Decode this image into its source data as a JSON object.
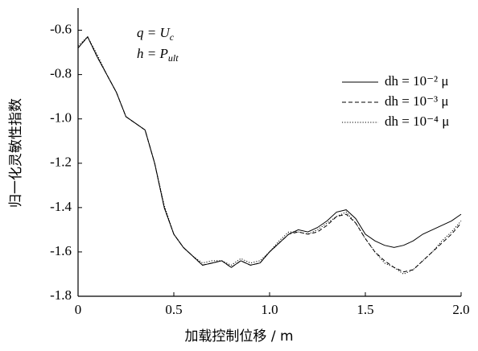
{
  "chart_data": {
    "type": "line",
    "xlabel": "加载控制位移 / m",
    "ylabel": "归一化灵敏性指数",
    "annotations": [
      {
        "text": "q = U",
        "sub": "c"
      },
      {
        "text": "h = P",
        "sub": "ult"
      }
    ],
    "x": [
      0,
      0.05,
      0.1,
      0.15,
      0.2,
      0.25,
      0.3,
      0.35,
      0.4,
      0.45,
      0.5,
      0.55,
      0.6,
      0.65,
      0.7,
      0.75,
      0.8,
      0.85,
      0.9,
      0.95,
      1.0,
      1.05,
      1.1,
      1.15,
      1.2,
      1.25,
      1.3,
      1.35,
      1.4,
      1.45,
      1.5,
      1.55,
      1.6,
      1.65,
      1.7,
      1.75,
      1.8,
      1.85,
      1.9,
      1.95,
      2.0
    ],
    "series": [
      {
        "name": "dh = 10⁻² μ",
        "color": "#000000",
        "dash": "solid",
        "values": [
          -0.68,
          -0.63,
          -0.72,
          -0.8,
          -0.88,
          -0.99,
          -1.02,
          -1.05,
          -1.2,
          -1.4,
          -1.52,
          -1.58,
          -1.62,
          -1.66,
          -1.65,
          -1.64,
          -1.67,
          -1.64,
          -1.66,
          -1.65,
          -1.6,
          -1.56,
          -1.52,
          -1.5,
          -1.51,
          -1.49,
          -1.46,
          -1.42,
          -1.41,
          -1.45,
          -1.52,
          -1.55,
          -1.57,
          -1.58,
          -1.57,
          -1.55,
          -1.52,
          -1.5,
          -1.48,
          -1.46,
          -1.43
        ]
      },
      {
        "name": "dh = 10⁻³ μ",
        "color": "#000000",
        "dash": "dashed",
        "values": [
          -0.68,
          -0.63,
          -0.72,
          -0.8,
          -0.88,
          -0.99,
          -1.02,
          -1.05,
          -1.2,
          -1.4,
          -1.52,
          -1.58,
          -1.62,
          -1.66,
          -1.65,
          -1.64,
          -1.67,
          -1.64,
          -1.66,
          -1.65,
          -1.6,
          -1.56,
          -1.52,
          -1.51,
          -1.52,
          -1.51,
          -1.48,
          -1.44,
          -1.43,
          -1.47,
          -1.54,
          -1.6,
          -1.64,
          -1.67,
          -1.69,
          -1.68,
          -1.64,
          -1.6,
          -1.56,
          -1.52,
          -1.47
        ]
      },
      {
        "name": "dh = 10⁻⁴ μ",
        "color": "#000000",
        "dash": "dotted",
        "values": [
          -0.67,
          -0.63,
          -0.71,
          -0.8,
          -0.88,
          -0.99,
          -1.02,
          -1.05,
          -1.2,
          -1.39,
          -1.52,
          -1.58,
          -1.62,
          -1.65,
          -1.64,
          -1.64,
          -1.66,
          -1.63,
          -1.65,
          -1.64,
          -1.6,
          -1.55,
          -1.51,
          -1.51,
          -1.52,
          -1.5,
          -1.47,
          -1.44,
          -1.42,
          -1.47,
          -1.54,
          -1.6,
          -1.65,
          -1.67,
          -1.7,
          -1.68,
          -1.64,
          -1.6,
          -1.55,
          -1.51,
          -1.46
        ]
      }
    ],
    "xlim": [
      0,
      2.0
    ],
    "xticks": [
      0,
      0.5,
      {
        "value": 1.0,
        "label": "1.0"
      },
      1.5,
      {
        "value": 2.0,
        "label": "2.0"
      }
    ],
    "ylim": [
      -1.8,
      -0.5
    ],
    "yticks": [
      -1.8,
      -1.6,
      -1.4,
      -1.2,
      {
        "value": -1.0,
        "label": "-1.0"
      },
      -0.8,
      -0.6
    ],
    "grid": false,
    "legend": "upper right"
  }
}
